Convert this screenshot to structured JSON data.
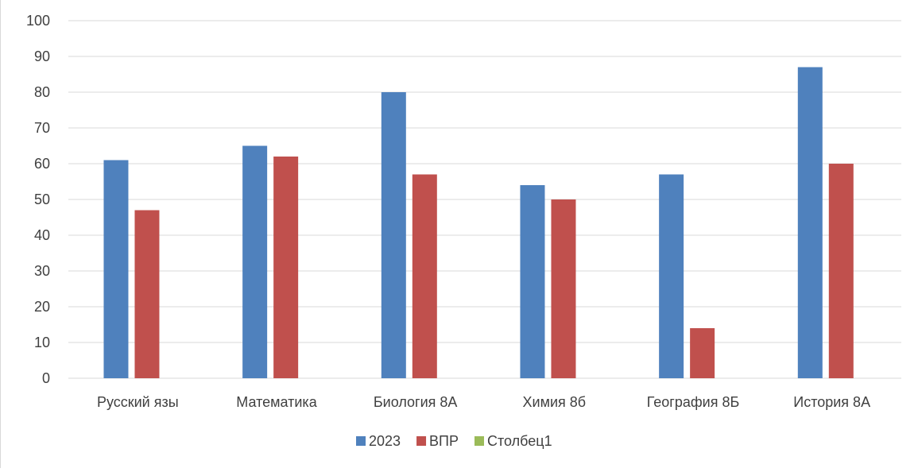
{
  "chart_data": {
    "type": "bar",
    "categories": [
      "Русский язы",
      "Математика",
      "Биология 8А",
      "Химия 8б",
      "География 8Б",
      "История 8А"
    ],
    "series": [
      {
        "name": "2023",
        "color": "#4f81bd",
        "values": [
          61,
          65,
          80,
          54,
          57,
          87
        ]
      },
      {
        "name": "ВПР",
        "color": "#c0504d",
        "values": [
          47,
          62,
          57,
          50,
          14,
          60
        ]
      },
      {
        "name": "Столбец1",
        "color": "#9bbb59",
        "values": [
          null,
          null,
          null,
          null,
          null,
          null
        ]
      }
    ],
    "ylim": [
      0,
      100
    ],
    "yticks": [
      0,
      10,
      20,
      30,
      40,
      50,
      60,
      70,
      80,
      90,
      100
    ],
    "grid": true,
    "legend": "bottom-center"
  }
}
